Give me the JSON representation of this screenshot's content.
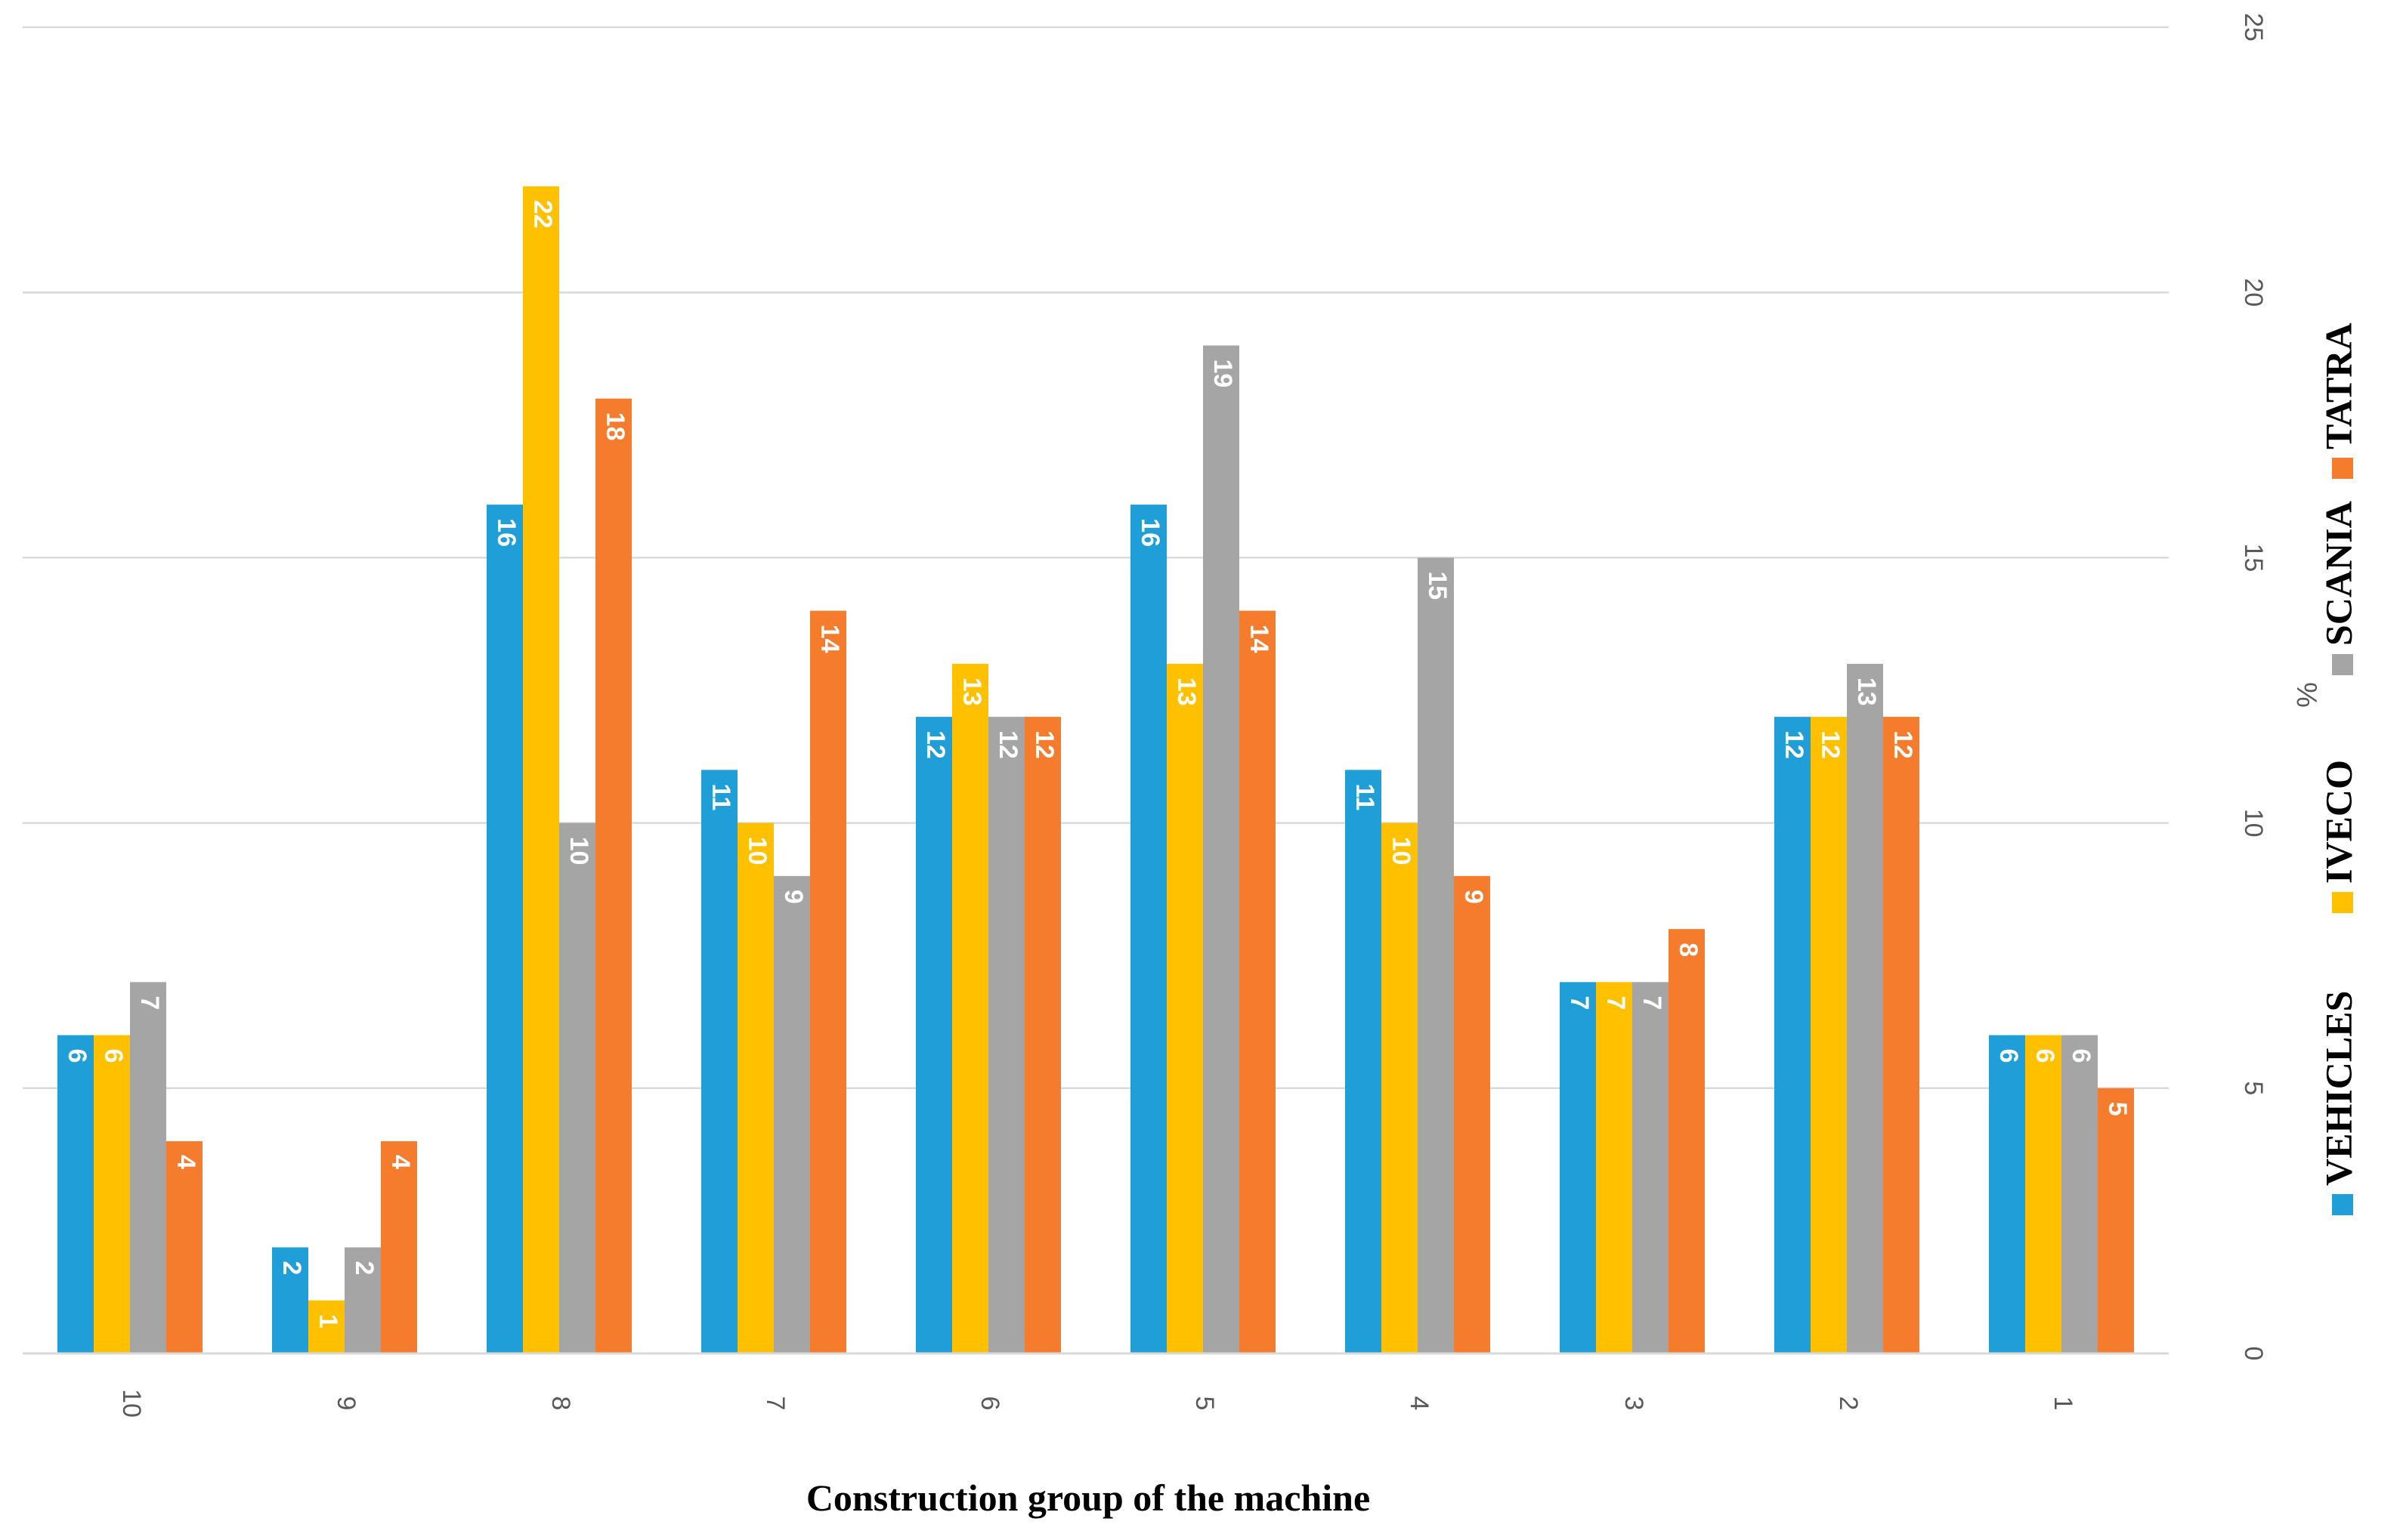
{
  "chart_data": {
    "type": "bar",
    "title": "",
    "xlabel": "Construction group of the machine",
    "ylabel": "%",
    "ylim": [
      0,
      25
    ],
    "yticks": [
      0,
      5,
      10,
      15,
      20,
      25
    ],
    "categories": [
      "10",
      "9",
      "8",
      "7",
      "6",
      "5",
      "4",
      "3",
      "2",
      "1"
    ],
    "series": [
      {
        "name": "VEHICLES",
        "color": "#1f9ed8",
        "values": [
          6,
          2,
          16,
          11,
          12,
          16,
          11,
          7,
          12,
          6
        ]
      },
      {
        "name": "IVECO",
        "color": "#ffc000",
        "values": [
          6,
          1,
          22,
          10,
          13,
          13,
          10,
          7,
          12,
          6
        ]
      },
      {
        "name": "SCANIA",
        "color": "#a5a5a5",
        "values": [
          7,
          2,
          10,
          9,
          12,
          19,
          15,
          7,
          13,
          6
        ]
      },
      {
        "name": "TATRA",
        "color": "#f47c2c",
        "values": [
          4,
          4,
          18,
          14,
          12,
          14,
          9,
          8,
          12,
          5
        ]
      }
    ],
    "legend_position": "right",
    "grid": true
  }
}
